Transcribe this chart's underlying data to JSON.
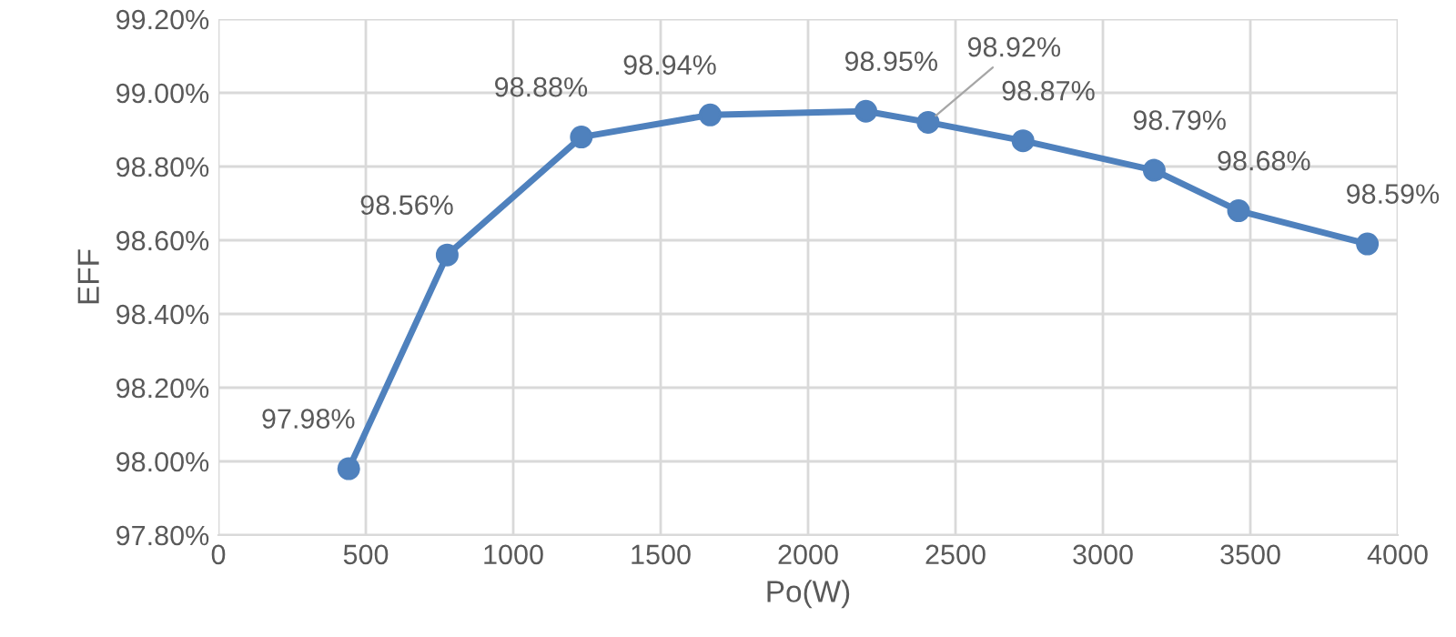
{
  "chart_data": {
    "type": "line",
    "xlabel": "Po(W)",
    "ylabel": "EFF",
    "x": [
      442,
      776,
      1231,
      1668,
      2196,
      2407,
      2729,
      3174,
      3460,
      3897
    ],
    "series": [
      {
        "color": "#4f81bd",
        "values": [
          97.98,
          98.56,
          98.88,
          98.94,
          98.95,
          98.92,
          98.87,
          98.79,
          98.68,
          98.59
        ],
        "value_labels": [
          "97.98%",
          "98.56%",
          "98.88%",
          "98.94%",
          "98.95%",
          "98.92%",
          "98.87%",
          "98.79%",
          "98.68%",
          "98.59%"
        ]
      }
    ],
    "xlim": [
      0,
      4000
    ],
    "xticks": [
      0,
      500,
      1000,
      1500,
      2000,
      2500,
      3000,
      3500,
      4000
    ],
    "ylim": [
      97.8,
      99.2
    ],
    "yticks": [
      {
        "value": 97.8,
        "label": "97.80%"
      },
      {
        "value": 98.0,
        "label": "98.00%"
      },
      {
        "value": 98.2,
        "label": "98.20%"
      },
      {
        "value": 98.4,
        "label": "98.40%"
      },
      {
        "value": 98.6,
        "label": "98.60%"
      },
      {
        "value": 98.8,
        "label": "98.80%"
      },
      {
        "value": 99.0,
        "label": "99.00%"
      },
      {
        "value": 99.2,
        "label": "99.20%"
      }
    ],
    "grid": true,
    "marker": "circle",
    "line_style": "solid"
  }
}
